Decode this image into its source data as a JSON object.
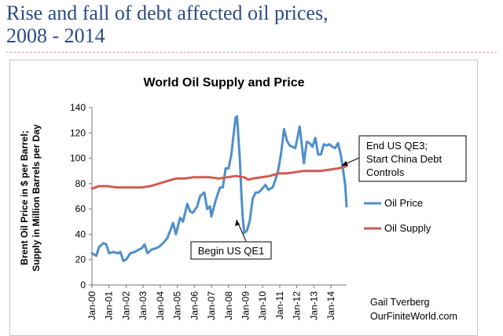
{
  "slide": {
    "title_line1": "Rise and fall of debt affected oil prices,",
    "title_line2": "2008 - 2014"
  },
  "chart_data": {
    "type": "line",
    "title": "World Oil Supply and Price",
    "ylabel_line1": "Brent Oil Price in $ per Barrel;",
    "ylabel_line2": "Supply in Million Barrels per Day",
    "xlabel": "",
    "ylim": [
      0,
      140
    ],
    "yticks": [
      0,
      20,
      40,
      60,
      80,
      100,
      120,
      140
    ],
    "xlim": [
      "2000-01",
      "2014-12"
    ],
    "xticks": [
      "Jan-00",
      "Jan-01",
      "Jan-02",
      "Jan-03",
      "Jan-04",
      "Jan-05",
      "Jan-06",
      "Jan-07",
      "Jan-08",
      "Jan-09",
      "Jan-10",
      "Jan-11",
      "Jan-12",
      "Jan-13",
      "Jan-14"
    ],
    "grid": false,
    "legend_position": "right",
    "series": [
      {
        "name": "Oil Price",
        "color": "#4f8fc9",
        "points": [
          [
            "2000-01",
            25
          ],
          [
            "2000-04",
            23
          ],
          [
            "2000-06",
            30
          ],
          [
            "2000-09",
            33
          ],
          [
            "2000-11",
            32
          ],
          [
            "2001-01",
            25
          ],
          [
            "2001-04",
            26
          ],
          [
            "2001-07",
            25
          ],
          [
            "2001-09",
            26
          ],
          [
            "2001-11",
            19
          ],
          [
            "2002-01",
            20
          ],
          [
            "2002-04",
            25
          ],
          [
            "2002-07",
            26
          ],
          [
            "2002-10",
            28
          ],
          [
            "2002-12",
            29
          ],
          [
            "2003-02",
            32
          ],
          [
            "2003-04",
            25
          ],
          [
            "2003-07",
            28
          ],
          [
            "2003-10",
            29
          ],
          [
            "2003-12",
            30
          ],
          [
            "2004-03",
            33
          ],
          [
            "2004-06",
            37
          ],
          [
            "2004-08",
            43
          ],
          [
            "2004-10",
            49
          ],
          [
            "2004-12",
            40
          ],
          [
            "2005-03",
            53
          ],
          [
            "2005-05",
            50
          ],
          [
            "2005-08",
            64
          ],
          [
            "2005-10",
            58
          ],
          [
            "2005-12",
            57
          ],
          [
            "2006-03",
            62
          ],
          [
            "2006-05",
            70
          ],
          [
            "2006-08",
            73
          ],
          [
            "2006-10",
            60
          ],
          [
            "2006-12",
            62
          ],
          [
            "2007-01",
            54
          ],
          [
            "2007-04",
            67
          ],
          [
            "2007-07",
            77
          ],
          [
            "2007-09",
            77
          ],
          [
            "2007-11",
            92
          ],
          [
            "2008-01",
            92
          ],
          [
            "2008-03",
            103
          ],
          [
            "2008-05",
            123
          ],
          [
            "2008-06",
            132
          ],
          [
            "2008-07",
            133
          ],
          [
            "2008-09",
            99
          ],
          [
            "2008-10",
            72
          ],
          [
            "2008-11",
            53
          ],
          [
            "2008-12",
            41
          ],
          [
            "2009-02",
            43
          ],
          [
            "2009-04",
            51
          ],
          [
            "2009-06",
            68
          ],
          [
            "2009-08",
            73
          ],
          [
            "2009-10",
            73
          ],
          [
            "2009-12",
            75
          ],
          [
            "2010-03",
            79
          ],
          [
            "2010-05",
            75
          ],
          [
            "2010-08",
            77
          ],
          [
            "2010-10",
            83
          ],
          [
            "2010-12",
            91
          ],
          [
            "2011-02",
            104
          ],
          [
            "2011-04",
            123
          ],
          [
            "2011-06",
            114
          ],
          [
            "2011-08",
            110
          ],
          [
            "2011-10",
            109
          ],
          [
            "2011-12",
            108
          ],
          [
            "2012-03",
            125
          ],
          [
            "2012-06",
            96
          ],
          [
            "2012-08",
            113
          ],
          [
            "2012-10",
            112
          ],
          [
            "2012-12",
            109
          ],
          [
            "2013-02",
            116
          ],
          [
            "2013-04",
            103
          ],
          [
            "2013-06",
            103
          ],
          [
            "2013-08",
            111
          ],
          [
            "2013-10",
            110
          ],
          [
            "2013-12",
            111
          ],
          [
            "2014-02",
            109
          ],
          [
            "2014-04",
            108
          ],
          [
            "2014-06",
            112
          ],
          [
            "2014-08",
            102
          ],
          [
            "2014-10",
            87
          ],
          [
            "2014-11",
            79
          ],
          [
            "2014-12",
            62
          ]
        ]
      },
      {
        "name": "Oil Supply",
        "color": "#cf5b52",
        "points": [
          [
            "2000-01",
            76
          ],
          [
            "2000-06",
            78
          ],
          [
            "2000-12",
            78
          ],
          [
            "2001-06",
            77
          ],
          [
            "2001-12",
            77
          ],
          [
            "2002-06",
            77
          ],
          [
            "2002-12",
            77
          ],
          [
            "2003-06",
            78
          ],
          [
            "2003-12",
            80
          ],
          [
            "2004-06",
            82
          ],
          [
            "2004-12",
            84
          ],
          [
            "2005-06",
            84
          ],
          [
            "2005-12",
            85
          ],
          [
            "2006-06",
            85
          ],
          [
            "2006-12",
            85
          ],
          [
            "2007-06",
            84
          ],
          [
            "2007-12",
            85
          ],
          [
            "2008-06",
            86
          ],
          [
            "2008-12",
            85
          ],
          [
            "2009-03",
            83
          ],
          [
            "2009-06",
            84
          ],
          [
            "2009-12",
            85
          ],
          [
            "2010-06",
            86
          ],
          [
            "2010-12",
            88
          ],
          [
            "2011-06",
            88
          ],
          [
            "2011-12",
            89
          ],
          [
            "2012-06",
            90
          ],
          [
            "2012-12",
            90
          ],
          [
            "2013-06",
            90
          ],
          [
            "2013-12",
            91
          ],
          [
            "2014-06",
            92
          ],
          [
            "2014-10",
            93
          ],
          [
            "2014-12",
            94
          ]
        ]
      }
    ],
    "annotations": [
      {
        "lines": [
          "Begin US QE1"
        ]
      },
      {
        "lines": [
          "End US QE3;",
          "Start China Debt",
          "Controls"
        ]
      }
    ]
  },
  "credit": {
    "line1": "Gail Tverberg",
    "line2": "OurFiniteWorld.com"
  }
}
